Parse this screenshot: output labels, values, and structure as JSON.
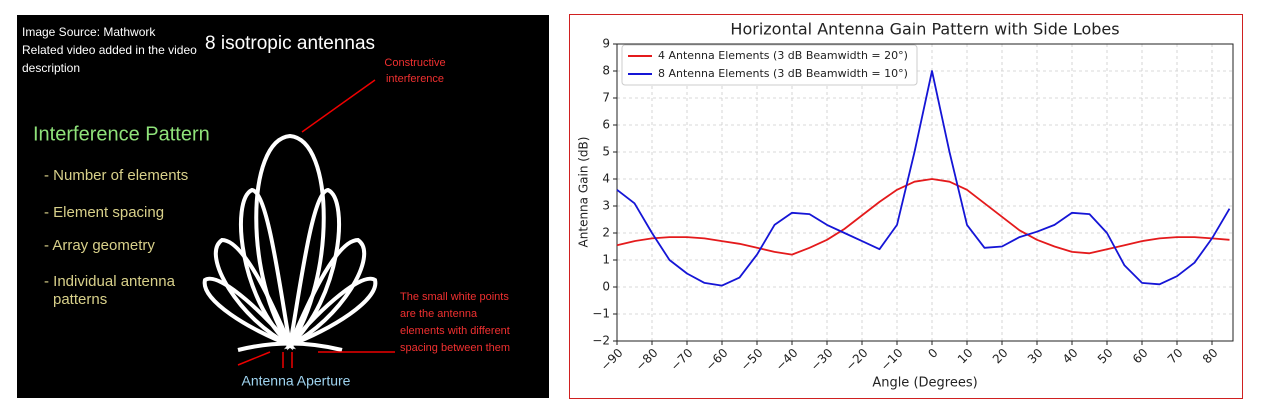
{
  "slide": {
    "source_lines": [
      "Image Source: Mathwork",
      "Related video added in the video",
      "description"
    ],
    "heading": "8 isotropic antennas",
    "constructive_lines": [
      "Constructive",
      "interference"
    ],
    "section_title": "Interference Pattern",
    "bullets": [
      "- Number of elements",
      "- Element spacing",
      "- Array geometry",
      "- Individual antenna",
      "patterns"
    ],
    "note_lines": [
      "The small white points",
      "are the antenna",
      "elements with different",
      "spacing between them"
    ],
    "aperture_label": "Antenna Aperture"
  },
  "chart_data": {
    "type": "line",
    "title": "Horizontal Antenna Gain Pattern with Side Lobes",
    "x_label": "Angle (Degrees)",
    "y_label": "Antenna Gain (dB)",
    "x": [
      -90,
      -85,
      -80,
      -75,
      -70,
      -65,
      -60,
      -55,
      -50,
      -45,
      -40,
      -35,
      -30,
      -25,
      -20,
      -15,
      -10,
      -5,
      0,
      5,
      10,
      15,
      20,
      25,
      30,
      35,
      40,
      45,
      50,
      55,
      60,
      65,
      70,
      75,
      80,
      85
    ],
    "series": [
      {
        "name": "4 Antenna Elements (3 dB Beamwidth = 20°)",
        "color": "#e41a1c",
        "values": [
          1.55,
          1.7,
          1.8,
          1.85,
          1.85,
          1.8,
          1.7,
          1.6,
          1.45,
          1.3,
          1.2,
          1.45,
          1.75,
          2.15,
          2.65,
          3.15,
          3.6,
          3.9,
          4.0,
          3.9,
          3.6,
          3.1,
          2.6,
          2.1,
          1.75,
          1.5,
          1.3,
          1.25,
          1.4,
          1.55,
          1.7,
          1.8,
          1.85,
          1.85,
          1.8,
          1.75
        ]
      },
      {
        "name": "8 Antenna Elements (3 dB Beamwidth = 10°)",
        "color": "#1515d6",
        "values": [
          3.6,
          3.1,
          2.0,
          1.0,
          0.5,
          0.15,
          0.05,
          0.35,
          1.2,
          2.3,
          2.75,
          2.7,
          2.3,
          2.0,
          1.7,
          1.4,
          2.3,
          5.0,
          8.0,
          5.0,
          2.3,
          1.45,
          1.5,
          1.85,
          2.05,
          2.3,
          2.75,
          2.7,
          2.0,
          0.8,
          0.15,
          0.1,
          0.4,
          0.9,
          1.8,
          2.9
        ]
      }
    ],
    "xlim": [
      -90,
      86
    ],
    "ylim": [
      -2,
      9
    ],
    "xticks": [
      {
        "value": -90,
        "label": "−90"
      },
      {
        "value": -80,
        "label": "−80"
      },
      {
        "value": -70,
        "label": "−70"
      },
      {
        "value": -60,
        "label": "−60"
      },
      {
        "value": -50,
        "label": "−50"
      },
      {
        "value": -40,
        "label": "−40"
      },
      {
        "value": -30,
        "label": "−30"
      },
      {
        "value": -20,
        "label": "−20"
      },
      {
        "value": -10,
        "label": "−10"
      },
      0,
      10,
      20,
      30,
      40,
      50,
      60,
      70,
      80
    ],
    "yticks": [
      {
        "value": -2,
        "label": "−2"
      },
      {
        "value": -1,
        "label": "−1"
      },
      0,
      1,
      2,
      3,
      4,
      5,
      6,
      7,
      8,
      9
    ],
    "grid": true,
    "legend": "upper-left"
  }
}
